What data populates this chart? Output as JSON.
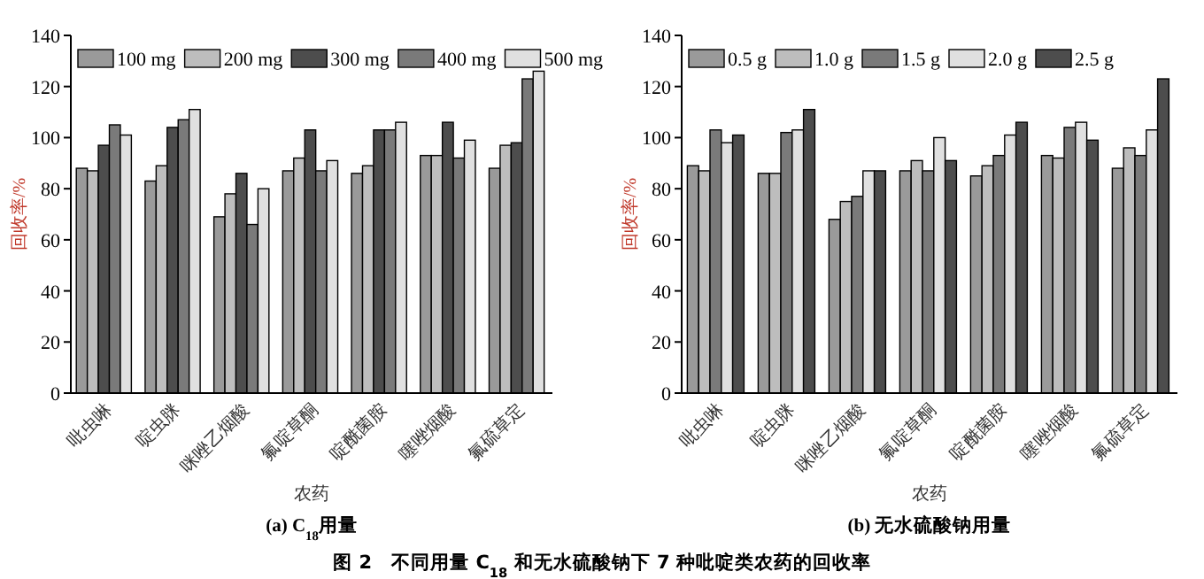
{
  "chart_data": [
    {
      "type": "bar",
      "title": "(a) C$_{18}$用量",
      "xlabel": "农药",
      "ylabel": "回收率/%",
      "categories": [
        "吡虫啉",
        "啶虫脒",
        "咪唑乙烟酸",
        "氟啶草酮",
        "啶酰菌胺",
        "噻唑烟酸",
        "氟硫草定"
      ],
      "series": [
        {
          "name": "100 mg",
          "color": "#9a9a9a",
          "values": [
            88,
            83,
            69,
            87,
            86,
            93,
            88
          ]
        },
        {
          "name": "200 mg",
          "color": "#bdbdbd",
          "values": [
            87,
            89,
            78,
            92,
            89,
            93,
            97
          ]
        },
        {
          "name": "300 mg",
          "color": "#4d4d4d",
          "values": [
            97,
            104,
            86,
            103,
            103,
            106,
            98
          ]
        },
        {
          "name": "400 mg",
          "color": "#7a7a7a",
          "values": [
            105,
            107,
            66,
            87,
            103,
            92,
            123
          ]
        },
        {
          "name": "500 mg",
          "color": "#e0e0e0",
          "values": [
            101,
            111,
            80,
            91,
            106,
            99,
            126
          ]
        }
      ],
      "ylim": [
        0,
        140
      ],
      "yticks": [
        0,
        20,
        40,
        60,
        80,
        100,
        120,
        140
      ],
      "grid": false,
      "legend": "top",
      "annotations": [
        "图 2　不同用量 C$_{18}$ 和无水硫酸钠下 7 种吡啶类农药的回收率"
      ]
    },
    {
      "type": "bar",
      "title": "(b) 无水硫酸钠用量",
      "xlabel": "农药",
      "ylabel": "回收率/%",
      "categories": [
        "吡虫啉",
        "啶虫脒",
        "咪唑乙烟酸",
        "氟啶草酮",
        "啶酰菌胺",
        "噻唑烟酸",
        "氟硫草定"
      ],
      "series": [
        {
          "name": "0.5 g",
          "color": "#9a9a9a",
          "values": [
            89,
            86,
            68,
            87,
            85,
            93,
            88
          ]
        },
        {
          "name": "1.0 g",
          "color": "#bdbdbd",
          "values": [
            87,
            86,
            75,
            91,
            89,
            92,
            96
          ]
        },
        {
          "name": "1.5 g",
          "color": "#7a7a7a",
          "values": [
            103,
            102,
            77,
            87,
            93,
            104,
            93
          ]
        },
        {
          "name": "2.0 g",
          "color": "#e0e0e0",
          "values": [
            98,
            103,
            87,
            100,
            101,
            106,
            103
          ]
        },
        {
          "name": "2.5 g",
          "color": "#4d4d4d",
          "values": [
            101,
            111,
            87,
            91,
            106,
            99,
            123
          ]
        }
      ],
      "ylim": [
        0,
        140
      ],
      "yticks": [
        0,
        20,
        40,
        60,
        80,
        100,
        120,
        140
      ],
      "grid": false,
      "legend": "top"
    }
  ]
}
